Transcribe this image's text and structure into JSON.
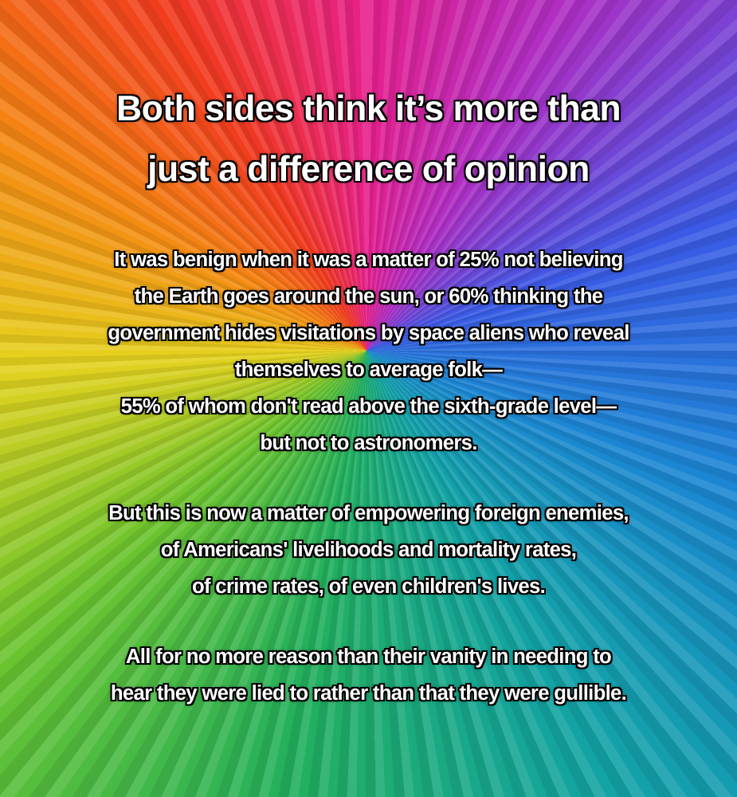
{
  "title": [
    "Both sides think it’s more than",
    "just a difference of opinion"
  ],
  "paragraphs": [
    [
      "It was benign when it was a matter of 25% not believing",
      "the Earth goes around the sun, or 60% thinking the",
      "government hides visitations by space aliens who reveal",
      "themselves to average folk—",
      "55% of whom don't read above the sixth-grade level—",
      "but not to astronomers."
    ],
    [
      "But this is now a matter of empowering foreign enemies,",
      "of Americans' livelihoods and mortality rates,",
      "of crime rates, of even children's lives."
    ],
    [
      "All for no more reason than their vanity in needing to",
      "hear they were lied to rather than that they were gullible."
    ]
  ]
}
